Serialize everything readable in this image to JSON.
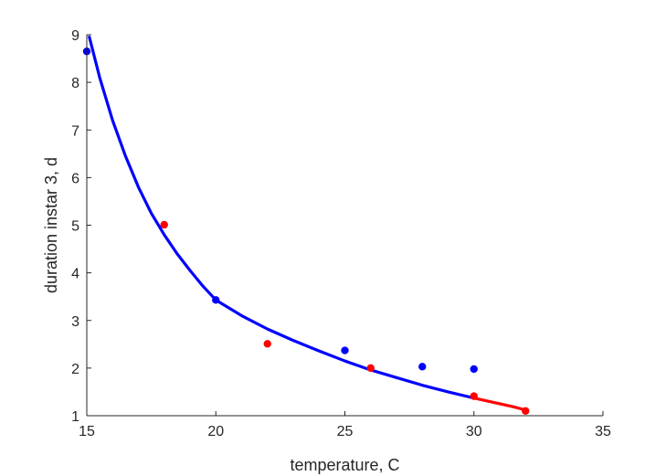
{
  "chart_data": {
    "type": "scatter",
    "xlabel": "temperature, C",
    "ylabel": "duration instar 3, d",
    "xlim": [
      15,
      35
    ],
    "ylim": [
      1,
      9
    ],
    "xticks": [
      "15",
      "20",
      "25",
      "30",
      "35"
    ],
    "yticks": [
      "1",
      "2",
      "3",
      "4",
      "5",
      "6",
      "7",
      "8",
      "9"
    ],
    "grid": false,
    "colors": {
      "blue": "#0000ff",
      "red": "#ff0000",
      "axis": "#262626"
    },
    "series": [
      {
        "kind": "points",
        "color": "blue",
        "x": [
          15,
          20,
          25,
          28,
          30
        ],
        "y": [
          8.65,
          3.43,
          2.37,
          2.03,
          1.98
        ]
      },
      {
        "kind": "points",
        "color": "red",
        "x": [
          18,
          22,
          26,
          30,
          32
        ],
        "y": [
          5.01,
          2.51,
          2.0,
          1.41,
          1.1
        ]
      },
      {
        "kind": "line",
        "color": "blue",
        "x": [
          15.1,
          15.5,
          16,
          16.5,
          17,
          17.5,
          18,
          18.5,
          19,
          19.5,
          20,
          21,
          22,
          23,
          24,
          25,
          26,
          27,
          28,
          29,
          30
        ],
        "y": [
          8.95,
          8.1,
          7.2,
          6.45,
          5.8,
          5.25,
          4.8,
          4.4,
          4.05,
          3.72,
          3.43,
          3.1,
          2.82,
          2.58,
          2.36,
          2.15,
          1.96,
          1.8,
          1.64,
          1.5,
          1.37
        ]
      },
      {
        "kind": "line",
        "color": "red",
        "x": [
          30,
          30.5,
          31,
          31.5,
          32
        ],
        "y": [
          1.37,
          1.31,
          1.25,
          1.19,
          1.12
        ]
      }
    ]
  }
}
